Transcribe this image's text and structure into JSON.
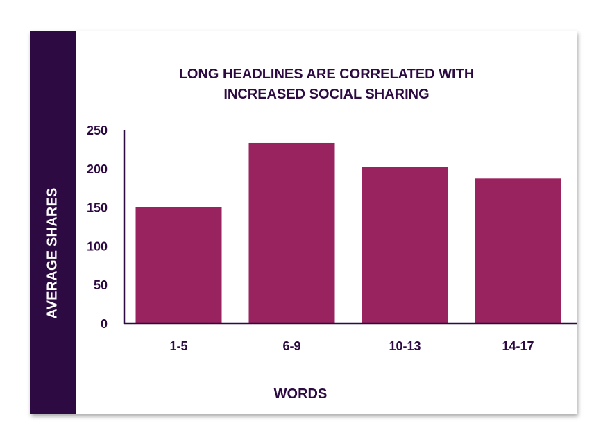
{
  "chart_data": {
    "type": "bar",
    "title_line1": "LONG HEADLINES ARE CORRELATED WITH",
    "title_line2": "INCREASED SOCIAL SHARING",
    "xlabel": "WORDS",
    "ylabel": "AVERAGE SHARES",
    "categories": [
      "1-5",
      "6-9",
      "10-13",
      "14-17"
    ],
    "values": [
      150,
      233,
      202,
      187
    ],
    "ylim": [
      0,
      250
    ],
    "yticks": [
      0,
      50,
      100,
      150,
      200,
      250
    ],
    "grid": false,
    "bar_color": "#98235f",
    "text_color": "#2d0a42",
    "band_color": "#2d0a42"
  }
}
